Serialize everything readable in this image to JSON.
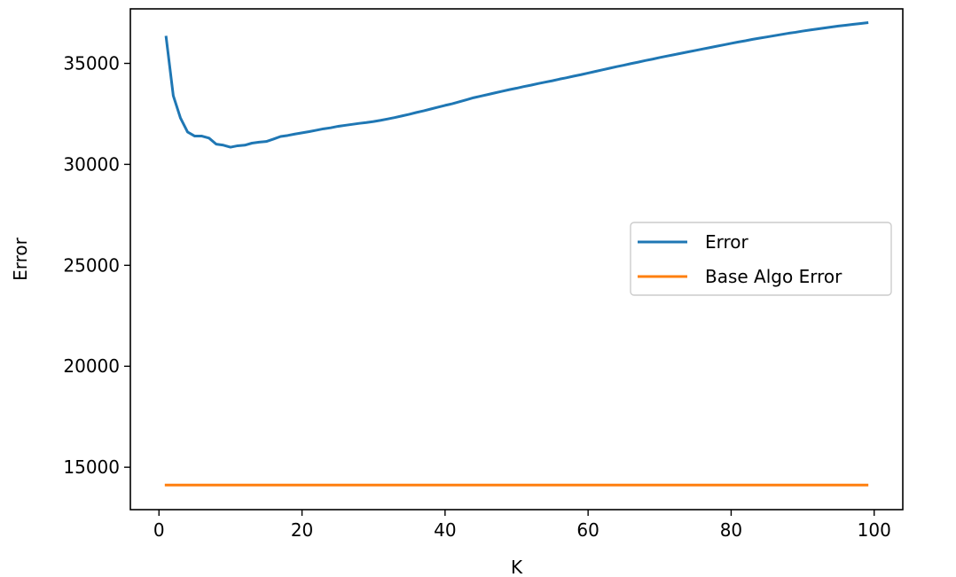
{
  "chart_data": {
    "type": "line",
    "xlabel": "K",
    "ylabel": "Error",
    "xlim": [
      -4,
      104
    ],
    "ylim": [
      12900,
      37700
    ],
    "xticks": [
      0,
      20,
      40,
      60,
      80,
      100
    ],
    "yticks": [
      15000,
      20000,
      25000,
      30000,
      35000
    ],
    "xtick_labels": [
      "0",
      "20",
      "40",
      "60",
      "80",
      "100"
    ],
    "ytick_labels": [
      "15000",
      "20000",
      "25000",
      "30000",
      "35000"
    ],
    "grid": false,
    "legend_position": "center-right",
    "series": [
      {
        "name": "Error",
        "color": "#1f77b4",
        "x": [
          1,
          2,
          3,
          4,
          5,
          6,
          7,
          8,
          9,
          10,
          11,
          12,
          13,
          14,
          15,
          16,
          17,
          18,
          19,
          20,
          21,
          22,
          23,
          24,
          25,
          26,
          27,
          28,
          29,
          30,
          31,
          32,
          33,
          34,
          35,
          36,
          37,
          38,
          39,
          40,
          41,
          42,
          43,
          44,
          45,
          46,
          47,
          48,
          49,
          50,
          51,
          52,
          53,
          54,
          55,
          56,
          57,
          58,
          59,
          60,
          61,
          62,
          63,
          64,
          65,
          66,
          67,
          68,
          69,
          70,
          71,
          72,
          73,
          74,
          75,
          76,
          77,
          78,
          79,
          80,
          81,
          82,
          83,
          84,
          85,
          86,
          87,
          88,
          89,
          90,
          91,
          92,
          93,
          94,
          95,
          96,
          97,
          98,
          99
        ],
        "y": [
          36300,
          33400,
          32300,
          31600,
          31400,
          31400,
          31300,
          31000,
          30950,
          30850,
          30920,
          30950,
          31050,
          31100,
          31130,
          31250,
          31380,
          31430,
          31500,
          31560,
          31620,
          31690,
          31760,
          31810,
          31880,
          31930,
          31980,
          32030,
          32070,
          32120,
          32180,
          32250,
          32320,
          32400,
          32480,
          32570,
          32650,
          32740,
          32830,
          32920,
          33000,
          33100,
          33200,
          33300,
          33380,
          33460,
          33540,
          33620,
          33700,
          33770,
          33850,
          33920,
          34000,
          34070,
          34140,
          34220,
          34290,
          34370,
          34440,
          34520,
          34600,
          34680,
          34760,
          34840,
          34910,
          34990,
          35060,
          35140,
          35210,
          35290,
          35360,
          35430,
          35500,
          35570,
          35640,
          35710,
          35780,
          35850,
          35920,
          35990,
          36060,
          36120,
          36190,
          36250,
          36310,
          36370,
          36430,
          36490,
          36540,
          36600,
          36650,
          36700,
          36750,
          36800,
          36850,
          36890,
          36930,
          36970,
          37010
        ]
      },
      {
        "name": "Base Algo Error",
        "color": "#ff7f0e",
        "x": [
          1,
          99
        ],
        "y": [
          14120,
          14120
        ]
      }
    ]
  }
}
